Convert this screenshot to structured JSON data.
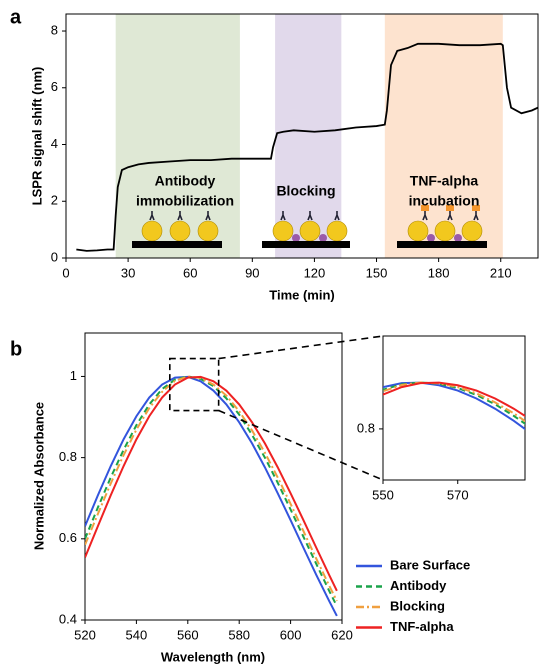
{
  "chart_data": [
    {
      "type": "line",
      "panel": "a",
      "xlabel": "Time (min)",
      "ylabel": "LSPR signal shift (nm)",
      "xlim": [
        0,
        228
      ],
      "ylim": [
        0,
        8.6
      ],
      "xticks": [
        0,
        30,
        60,
        90,
        120,
        150,
        180,
        210
      ],
      "yticks": [
        0,
        2,
        4,
        6,
        8
      ],
      "regions": [
        {
          "x": [
            24,
            84
          ],
          "color": "#dfe8d5"
        },
        {
          "x": [
            101,
            133
          ],
          "color": "#e1d9eb"
        },
        {
          "x": [
            154,
            211
          ],
          "color": "#fde3cf"
        }
      ],
      "annotations": [
        [
          "Antibody",
          "immobilization"
        ],
        [
          "Blocking"
        ],
        [
          "TNF-alpha",
          "incubation"
        ]
      ],
      "color": "#000000",
      "x": [
        5,
        10,
        15,
        20,
        23,
        24,
        25,
        27,
        30,
        35,
        40,
        50,
        60,
        70,
        80,
        90,
        99,
        100,
        102,
        105,
        110,
        120,
        130,
        140,
        150,
        154,
        155,
        157,
        160,
        165,
        170,
        180,
        190,
        200,
        210,
        211,
        213,
        215,
        220,
        225,
        228
      ],
      "values": [
        0.3,
        0.25,
        0.27,
        0.3,
        0.3,
        1.5,
        2.5,
        3.1,
        3.2,
        3.3,
        3.35,
        3.4,
        3.45,
        3.45,
        3.5,
        3.5,
        3.5,
        3.9,
        4.4,
        4.45,
        4.5,
        4.45,
        4.5,
        4.6,
        4.65,
        4.7,
        5.2,
        6.8,
        7.3,
        7.4,
        7.55,
        7.55,
        7.5,
        7.5,
        7.55,
        7.5,
        6.0,
        5.3,
        5.1,
        5.2,
        5.3
      ]
    },
    {
      "type": "line",
      "panel": "b",
      "xlabel": "Wavelength (nm)",
      "ylabel": "Normalized Absorbance",
      "xlim": [
        520,
        620
      ],
      "ylim": [
        0.4,
        1.107
      ],
      "xticks": [
        520,
        540,
        560,
        580,
        600,
        620
      ],
      "yticks": [
        0.4,
        0.6,
        0.8,
        1
      ],
      "zoom_box": {
        "x": [
          553,
          572
        ],
        "y": [
          0.916,
          1.044
        ]
      },
      "inset": {
        "xlim": [
          550,
          588
        ],
        "ylim": [
          0.58,
          1.2
        ],
        "xticks": [
          550,
          570
        ],
        "yticks": [
          0.8
        ]
      },
      "x": [
        520,
        525,
        530,
        535,
        540,
        545,
        550,
        555,
        560,
        565,
        570,
        575,
        580,
        585,
        590,
        595,
        600,
        605,
        610,
        615,
        618
      ],
      "series": [
        {
          "name": "Bare Surface",
          "color": "#3355dd",
          "dash": "solid",
          "values": [
            0.631,
            0.707,
            0.779,
            0.845,
            0.902,
            0.948,
            0.98,
            0.997,
            0.999,
            0.988,
            0.965,
            0.931,
            0.887,
            0.835,
            0.776,
            0.712,
            0.646,
            0.578,
            0.511,
            0.447,
            0.41
          ]
        },
        {
          "name": "Antibody",
          "color": "#1aa34a",
          "dash": "dashed",
          "values": [
            0.6,
            0.677,
            0.751,
            0.819,
            0.88,
            0.931,
            0.969,
            0.992,
            1.0,
            0.994,
            0.976,
            0.946,
            0.906,
            0.856,
            0.8,
            0.738,
            0.672,
            0.605,
            0.538,
            0.472,
            0.434
          ]
        },
        {
          "name": "Blocking",
          "color": "#f0a040",
          "dash": "dashdot",
          "values": [
            0.585,
            0.661,
            0.736,
            0.806,
            0.869,
            0.922,
            0.962,
            0.989,
            1.0,
            0.996,
            0.98,
            0.953,
            0.914,
            0.867,
            0.812,
            0.751,
            0.686,
            0.619,
            0.551,
            0.485,
            0.447
          ]
        },
        {
          "name": "TNF-alpha",
          "color": "#ee2222",
          "dash": "solid",
          "values": [
            0.554,
            0.631,
            0.707,
            0.779,
            0.845,
            0.902,
            0.948,
            0.98,
            0.997,
            0.999,
            0.988,
            0.965,
            0.931,
            0.887,
            0.835,
            0.776,
            0.712,
            0.646,
            0.578,
            0.511,
            0.472
          ]
        }
      ]
    }
  ]
}
